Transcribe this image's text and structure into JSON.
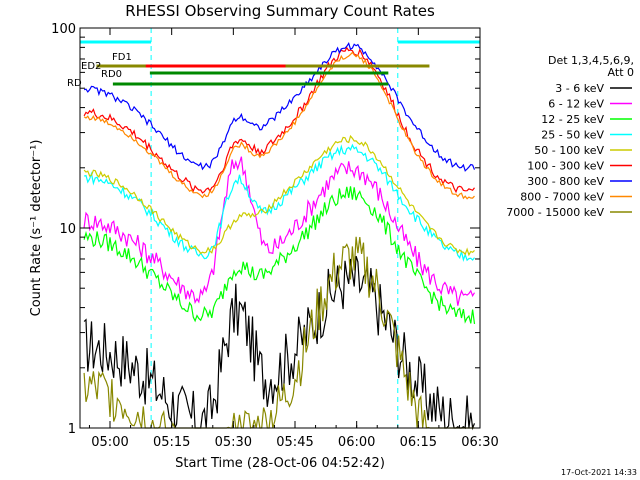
{
  "chart_data": {
    "type": "line",
    "title": "RHESSI Observing Summary Count Rates",
    "xlabel": "Start Time (28-Oct-06 04:52:42)",
    "ylabel": "Count Rate (s⁻¹ detector⁻¹)",
    "yscale": "log",
    "ylim": [
      1,
      100
    ],
    "xlim": [
      "04:52:42",
      "06:30:00"
    ],
    "x_ticks": [
      "05:00",
      "05:15",
      "05:30",
      "05:45",
      "06:00",
      "06:15",
      "06:30"
    ],
    "y_ticks": [
      "1",
      "10",
      "100"
    ],
    "legend_header": [
      "Det 1,3,4,5,6,9,",
      "Att 0"
    ],
    "legend_position": "right",
    "series": [
      {
        "name": "3 - 6 keV",
        "color": "#000000"
      },
      {
        "name": "6 - 12 keV",
        "color": "#ff00ff"
      },
      {
        "name": "12 - 25 keV",
        "color": "#00ff00"
      },
      {
        "name": "25 - 50 keV",
        "color": "#00ffff"
      },
      {
        "name": "50 - 100 keV",
        "color": "#cccc00"
      },
      {
        "name": "100 - 300 keV",
        "color": "#ff0000"
      },
      {
        "name": "300 - 800 keV",
        "color": "#0000ff"
      },
      {
        "name": "800 - 7000 keV",
        "color": "#ff8800"
      },
      {
        "name": "7000 - 15000 keV",
        "color": "#888800"
      }
    ],
    "flag_labels": [
      "FD1",
      "ED2",
      "RD0",
      "RD"
    ],
    "night_intervals": [
      [
        "04:52:42",
        "05:10:00"
      ],
      [
        "06:10:00",
        "06:30:00"
      ]
    ],
    "timestamp": "17-Oct-2021 14:33"
  }
}
